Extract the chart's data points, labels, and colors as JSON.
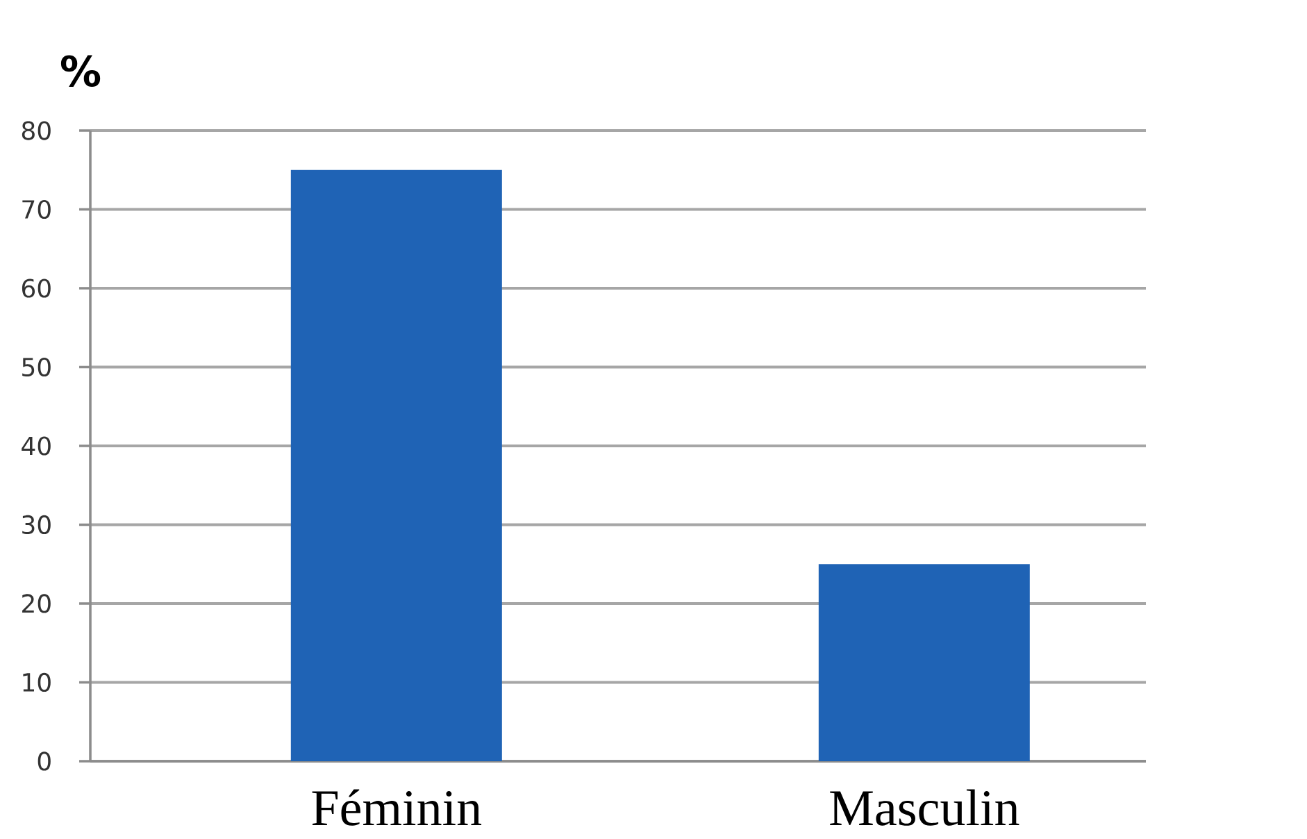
{
  "chart_data": {
    "type": "bar",
    "categories": [
      "Féminin",
      "Masculin"
    ],
    "values": [
      75,
      25
    ],
    "color": "#1f63b5",
    "ylabel": "%",
    "ylim": [
      0,
      80
    ],
    "yticks": [
      0,
      10,
      20,
      30,
      40,
      50,
      60,
      70,
      80
    ],
    "grid": "y"
  }
}
